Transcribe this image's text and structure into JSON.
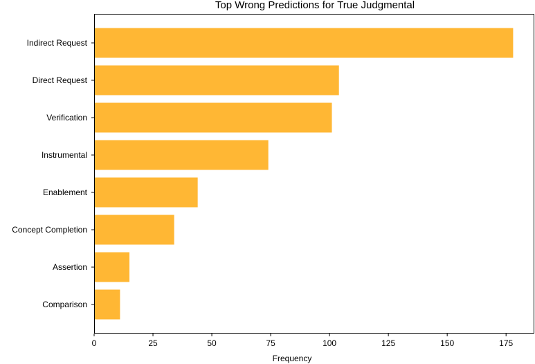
{
  "chart_data": {
    "type": "bar",
    "orientation": "horizontal",
    "title": "Top Wrong Predictions for True Judgmental",
    "xlabel": "Frequency",
    "ylabel": "",
    "categories": [
      "Indirect Request",
      "Direct Request",
      "Verification",
      "Instrumental",
      "Enablement",
      "Concept Completion",
      "Assertion",
      "Comparison"
    ],
    "values": [
      178,
      104,
      101,
      74,
      44,
      34,
      15,
      11
    ],
    "xlim": [
      0,
      187
    ],
    "xticks": [
      0,
      25,
      50,
      75,
      100,
      125,
      150,
      175
    ],
    "bar_color": "#ffb734",
    "grid": false,
    "legend": "none"
  }
}
